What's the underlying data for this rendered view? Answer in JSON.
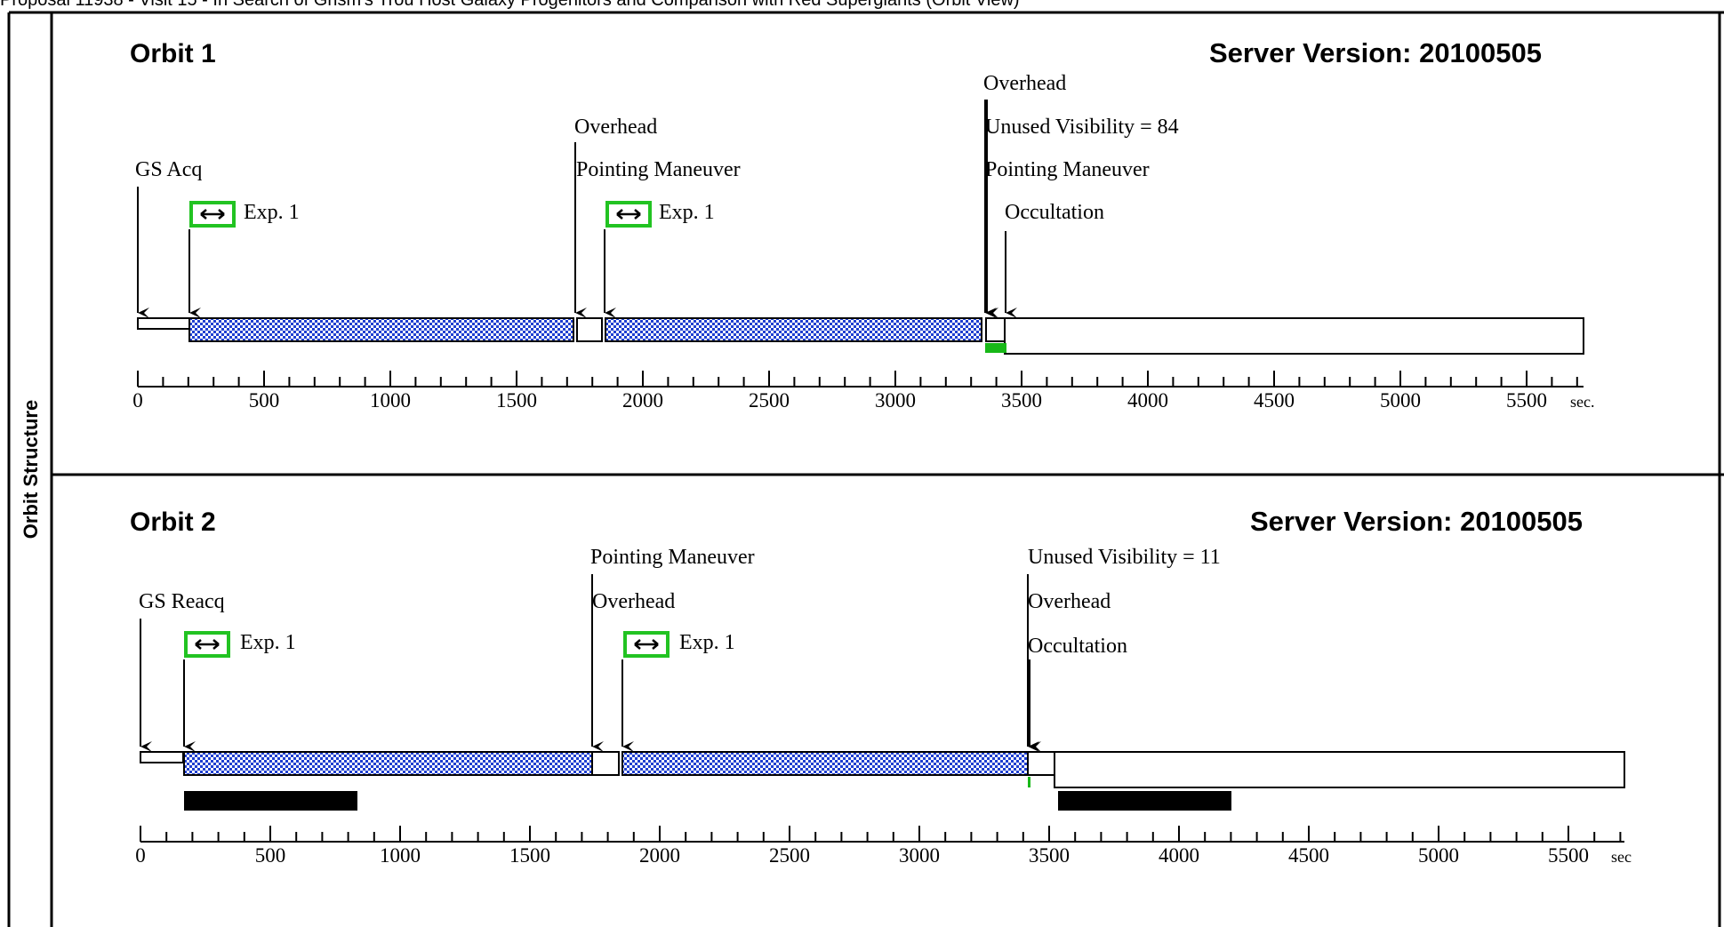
{
  "header": {
    "text": "Proposal 11938 - Visit 15 - In Search of Grism's Trou Host Galaxy Progenitors and Comparison with Red Supergiants (Orbit View)"
  },
  "side_label": "Orbit Structure",
  "colors": {
    "dotted_fill": "#1f3fd0",
    "exp_icon_border": "#22c322",
    "green_marker": "#18b818",
    "black_bar": "#000000"
  },
  "icons": {
    "exposure": "double-arrow-icon"
  },
  "orbits": [
    {
      "title": "Orbit 1",
      "server": "Server Version: 20100505",
      "labels": {
        "gs": "GS Acq",
        "exp_a": "Exp. 1",
        "overhead_a": "Overhead",
        "pointing_a": "Pointing Maneuver",
        "exp_b": "Exp. 1",
        "overhead_b": "Overhead",
        "unused": "Unused Visibility = 84",
        "pointing_b": "Pointing Maneuver",
        "occultation": "Occultation"
      },
      "axis": {
        "ticks": [
          "0",
          "500",
          "1000",
          "1500",
          "2000",
          "2500",
          "3000",
          "3500",
          "4000",
          "4500",
          "5000",
          "5500"
        ],
        "unit": "sec."
      }
    },
    {
      "title": "Orbit 2",
      "server": "Server Version: 20100505",
      "labels": {
        "gs": "GS Reacq",
        "exp_a": "Exp. 1",
        "pointing_a": "Pointing Maneuver",
        "overhead_a": "Overhead",
        "exp_b": "Exp. 1",
        "unused": "Unused Visibility = 11",
        "overhead_b": "Overhead",
        "occultation": "Occultation"
      },
      "axis": {
        "ticks": [
          "0",
          "500",
          "1000",
          "1500",
          "2000",
          "2500",
          "3000",
          "3500",
          "4000",
          "4500",
          "5000",
          "5500"
        ],
        "unit": "sec"
      }
    }
  ]
}
